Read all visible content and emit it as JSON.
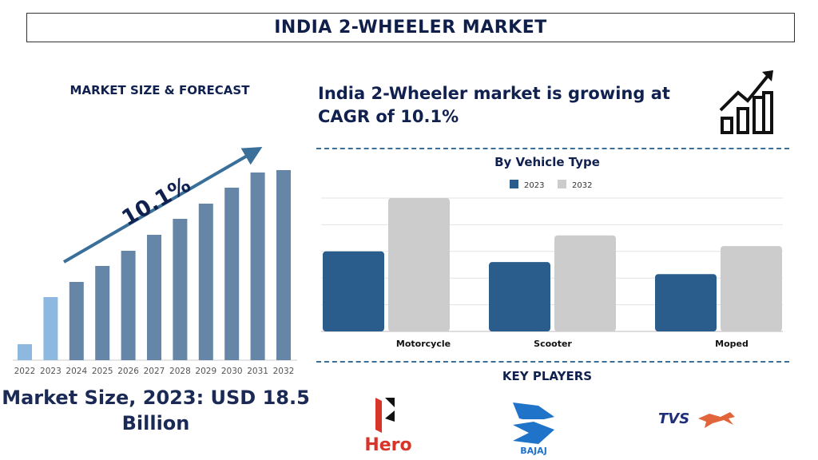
{
  "header": {
    "title": "INDIA 2-WHEELER MARKET"
  },
  "left": {
    "heading": "MARKET SIZE & FORECAST",
    "market_size": "Market Size, 2023: USD 18.5 Billion"
  },
  "headline": "India 2-Wheeler market is growing at CAGR of 10.1%",
  "growth_icon": "bar-chart-growth-arrow-icon",
  "key_players": {
    "title": "KEY PLAYERS",
    "logos": [
      "Hero",
      "BAJAJ",
      "TVS"
    ]
  },
  "colors": {
    "navy": "#10214f",
    "bar_history": "#8db8e0",
    "bar_forecast": "#6586a6",
    "arrow": "#3a6f9a",
    "series_2023": "#2a5d8c",
    "series_2032": "#cccccc"
  },
  "chart_data": [
    {
      "type": "bar",
      "title": "",
      "categories": [
        "2022",
        "2023",
        "2024",
        "2025",
        "2026",
        "2027",
        "2028",
        "2029",
        "2030",
        "2031",
        "2032"
      ],
      "values": [
        2.0,
        7.9,
        9.8,
        11.8,
        13.7,
        15.7,
        17.7,
        19.6,
        21.6,
        23.5,
        23.8
      ],
      "highlighted": [
        "2022",
        "2023"
      ],
      "annotation": "10.1%",
      "grid": false
    },
    {
      "type": "bar",
      "title": "By Vehicle Type",
      "categories": [
        "Motorcycle",
        "Scooter",
        "Moped"
      ],
      "series": [
        {
          "name": "2023",
          "values": [
            3.0,
            2.6,
            2.15
          ]
        },
        {
          "name": "2032",
          "values": [
            5.0,
            3.6,
            3.2
          ]
        }
      ],
      "ylim": [
        0,
        5
      ],
      "grid": true,
      "legend": "top-center"
    }
  ]
}
